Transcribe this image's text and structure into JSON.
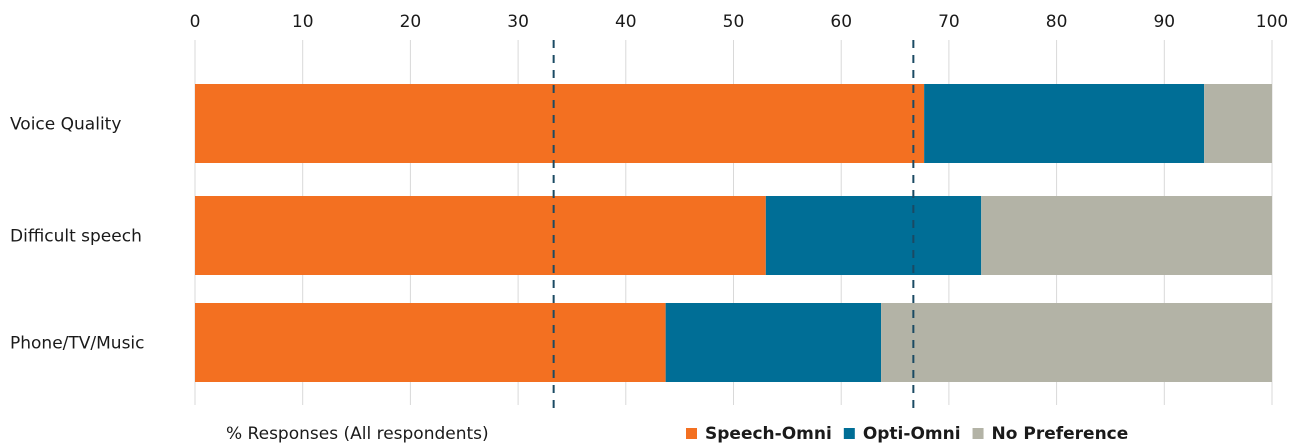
{
  "chart_data": {
    "type": "bar",
    "orientation": "horizontal",
    "stacked": true,
    "categories": [
      "Voice Quality",
      "Difficult speech",
      "Phone/TV/Music"
    ],
    "series": [
      {
        "name": "Speech-Omni",
        "values": [
          67.7,
          53,
          43.7
        ],
        "color": "#f37021"
      },
      {
        "name": "Opti-Omni",
        "values": [
          26,
          20,
          20
        ],
        "color": "#006e96"
      },
      {
        "name": "No Preference",
        "values": [
          6.3,
          27,
          36.3
        ],
        "color": "#b3b3a6"
      }
    ],
    "x_ticks": [
      "0",
      "10",
      "20",
      "30",
      "40",
      "50",
      "60",
      "70",
      "80",
      "90",
      "100"
    ],
    "xlim": [
      0,
      100
    ],
    "xlabel": "% Responses (All respondents)",
    "reference_lines": [
      33.3,
      66.7
    ],
    "grid": true,
    "legend_position": "bottom"
  }
}
